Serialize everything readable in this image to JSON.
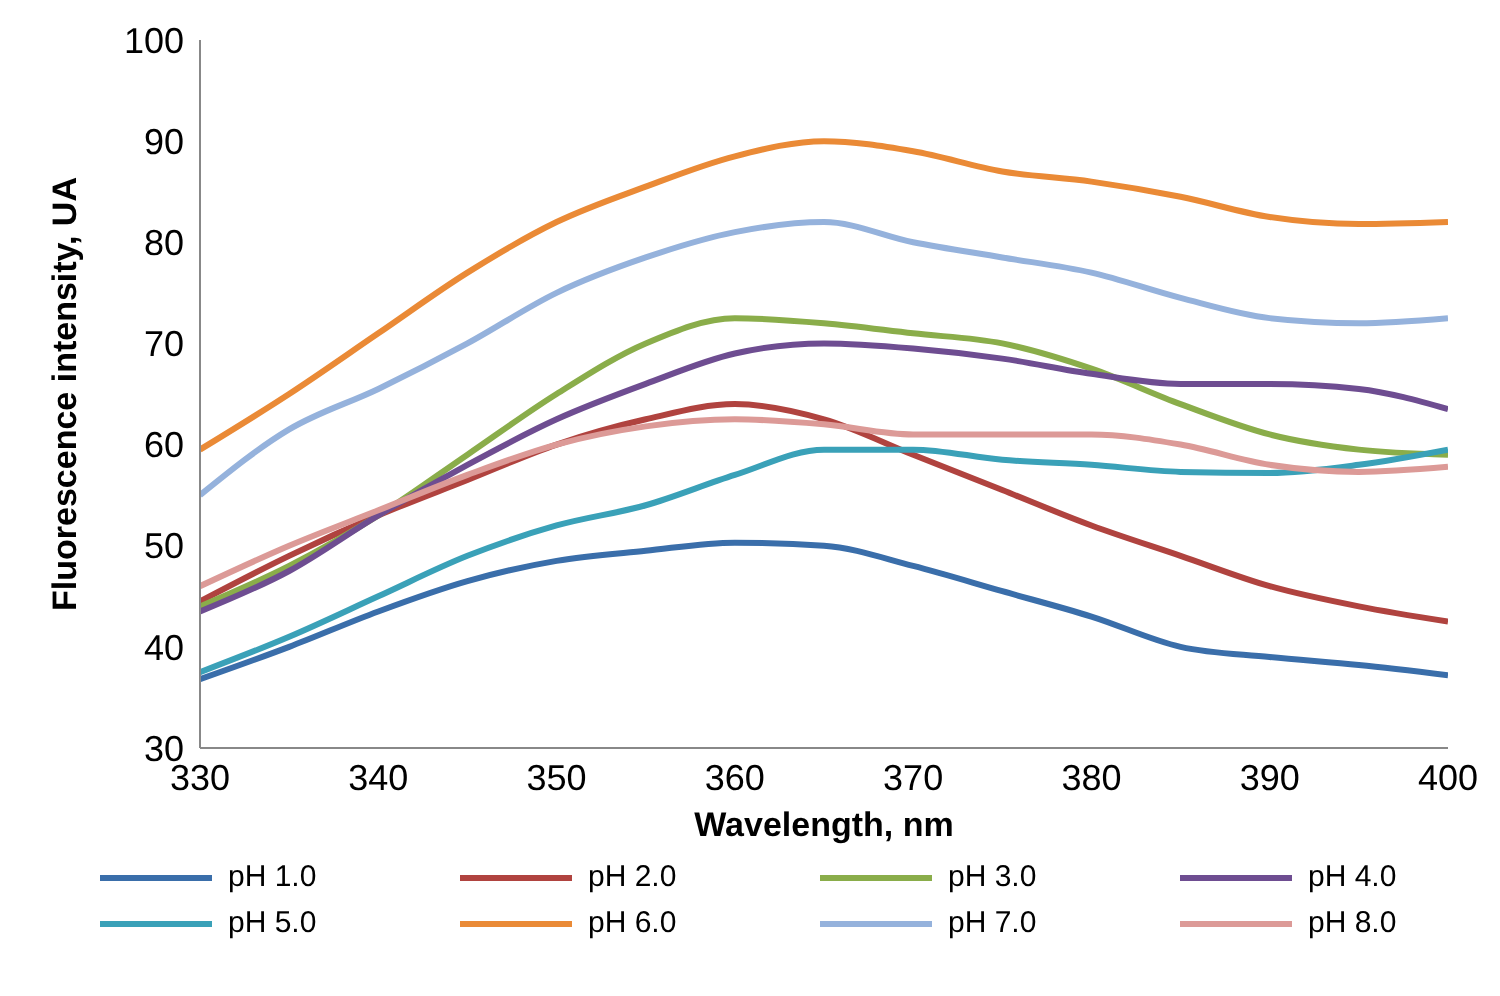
{
  "chart_data": {
    "type": "line",
    "xlabel": "Wavelength, nm",
    "ylabel": "Fluorescence intensity, UA",
    "x": [
      330,
      335,
      340,
      345,
      350,
      355,
      360,
      365,
      370,
      375,
      380,
      385,
      390,
      395,
      400
    ],
    "xlim": [
      330,
      400
    ],
    "xticks": [
      330,
      340,
      350,
      360,
      370,
      380,
      390,
      400
    ],
    "ylim": [
      30,
      100
    ],
    "yticks": [
      30,
      40,
      50,
      60,
      70,
      80,
      90,
      100
    ],
    "grid": false,
    "legend": "bottom",
    "marker": "none",
    "line_style": "solid",
    "series": [
      {
        "name": "pH 1.0",
        "color": "#3a6eaa",
        "values": [
          36.8,
          40,
          43.5,
          46.5,
          48.5,
          49.5,
          50.3,
          50,
          48,
          45.5,
          43,
          40,
          39,
          38.2,
          37.2
        ]
      },
      {
        "name": "pH 2.0",
        "color": "#b0433f",
        "values": [
          44.5,
          49,
          53,
          56.5,
          60,
          62.5,
          64,
          62.5,
          59,
          55.5,
          52,
          49,
          46,
          44,
          42.5
        ]
      },
      {
        "name": "pH 3.0",
        "color": "#8aad4a",
        "values": [
          44,
          48,
          53,
          59,
          65,
          70,
          72.5,
          72,
          71,
          70,
          67.5,
          64,
          61,
          59.5,
          59
        ]
      },
      {
        "name": "pH 4.0",
        "color": "#6e4d91",
        "values": [
          43.5,
          47.5,
          53,
          58,
          62.5,
          66,
          69,
          70,
          69.5,
          68.5,
          67,
          66,
          66,
          65.5,
          63.5
        ]
      },
      {
        "name": "pH 5.0",
        "color": "#3aa1b8",
        "values": [
          37.5,
          41,
          45,
          49,
          52,
          54,
          57,
          59.5,
          59.5,
          58.5,
          58,
          57.3,
          57.2,
          58,
          59.5
        ]
      },
      {
        "name": "pH 6.0",
        "color": "#ea8a36",
        "values": [
          59.5,
          65,
          71,
          77,
          82,
          85.5,
          88.5,
          90,
          89,
          87,
          86,
          84.5,
          82.5,
          81.8,
          82
        ]
      },
      {
        "name": "pH 7.0",
        "color": "#95b2dc",
        "values": [
          55,
          61.5,
          65.5,
          70,
          75,
          78.5,
          81,
          82,
          80,
          78.5,
          77,
          74.5,
          72.5,
          72,
          72.5
        ]
      },
      {
        "name": "pH 8.0",
        "color": "#dc9a97",
        "values": [
          46,
          50,
          53.5,
          57,
          60,
          61.8,
          62.5,
          62,
          61,
          61,
          61,
          60,
          58,
          57.3,
          57.8
        ]
      }
    ]
  }
}
